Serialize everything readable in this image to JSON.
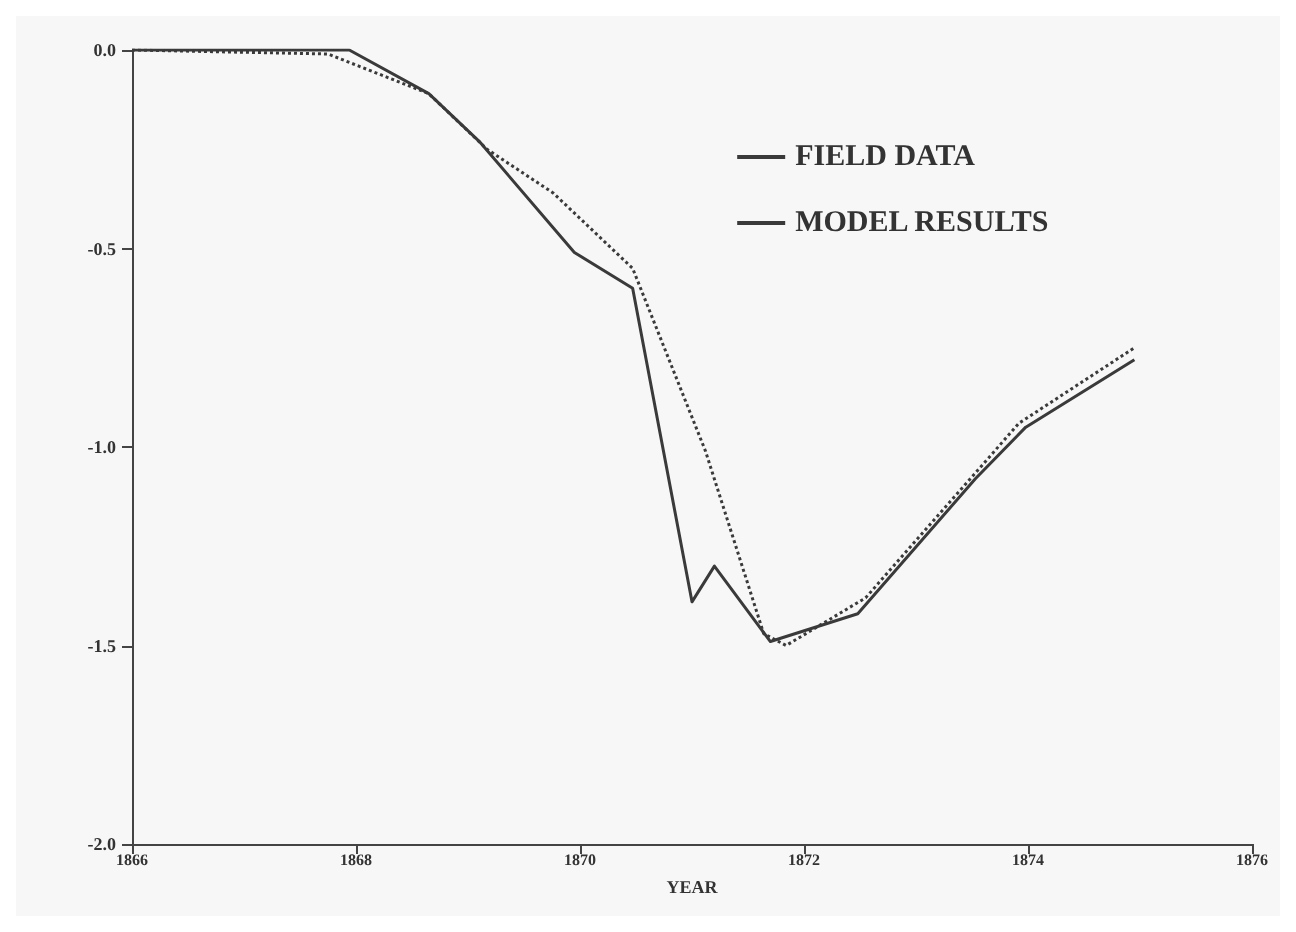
{
  "chart_data": {
    "type": "line",
    "xlabel": "YEAR",
    "xlim": [
      1866,
      1876
    ],
    "xticks": [
      1866,
      1868,
      1870,
      1872,
      1874,
      1876
    ],
    "ylim": [
      -2,
      0
    ],
    "yticks": [
      {
        "value": -2,
        "label": "-2.0"
      },
      {
        "value": -1.5,
        "label": "-1.5"
      },
      {
        "value": -1,
        "label": "-1.0"
      },
      {
        "value": -0.5,
        "label": "-0.5"
      },
      {
        "value": 0,
        "label": "0.0"
      }
    ],
    "grid": false,
    "legend": "top right",
    "marker": "none",
    "series": [
      {
        "name": "FIELD DATA",
        "color": "#3a3a3a",
        "line_style": "solid",
        "x": [
          1866,
          1867.94,
          1868.65,
          1869.1,
          1869.95,
          1870.47,
          1871.0,
          1871.2,
          1871.7,
          1872.48,
          1873.53,
          1873.98,
          1874.95
        ],
        "values": [
          0,
          0,
          -0.11,
          -0.23,
          -0.51,
          -0.6,
          -1.39,
          -1.3,
          -1.49,
          -1.42,
          -1.08,
          -0.95,
          -0.78
        ]
      },
      {
        "name": "MODEL RESULTS",
        "color": "#3a3a3a",
        "line_style": "dotted",
        "x": [
          1866,
          1867.75,
          1868.65,
          1869.17,
          1869.76,
          1870.47,
          1871.12,
          1871.64,
          1871.84,
          1872.55,
          1873.92,
          1874.95
        ],
        "values": [
          0,
          -0.01,
          -0.11,
          -0.25,
          -0.36,
          -0.55,
          -1.01,
          -1.47,
          -1.5,
          -1.38,
          -0.94,
          -0.75
        ]
      }
    ]
  }
}
